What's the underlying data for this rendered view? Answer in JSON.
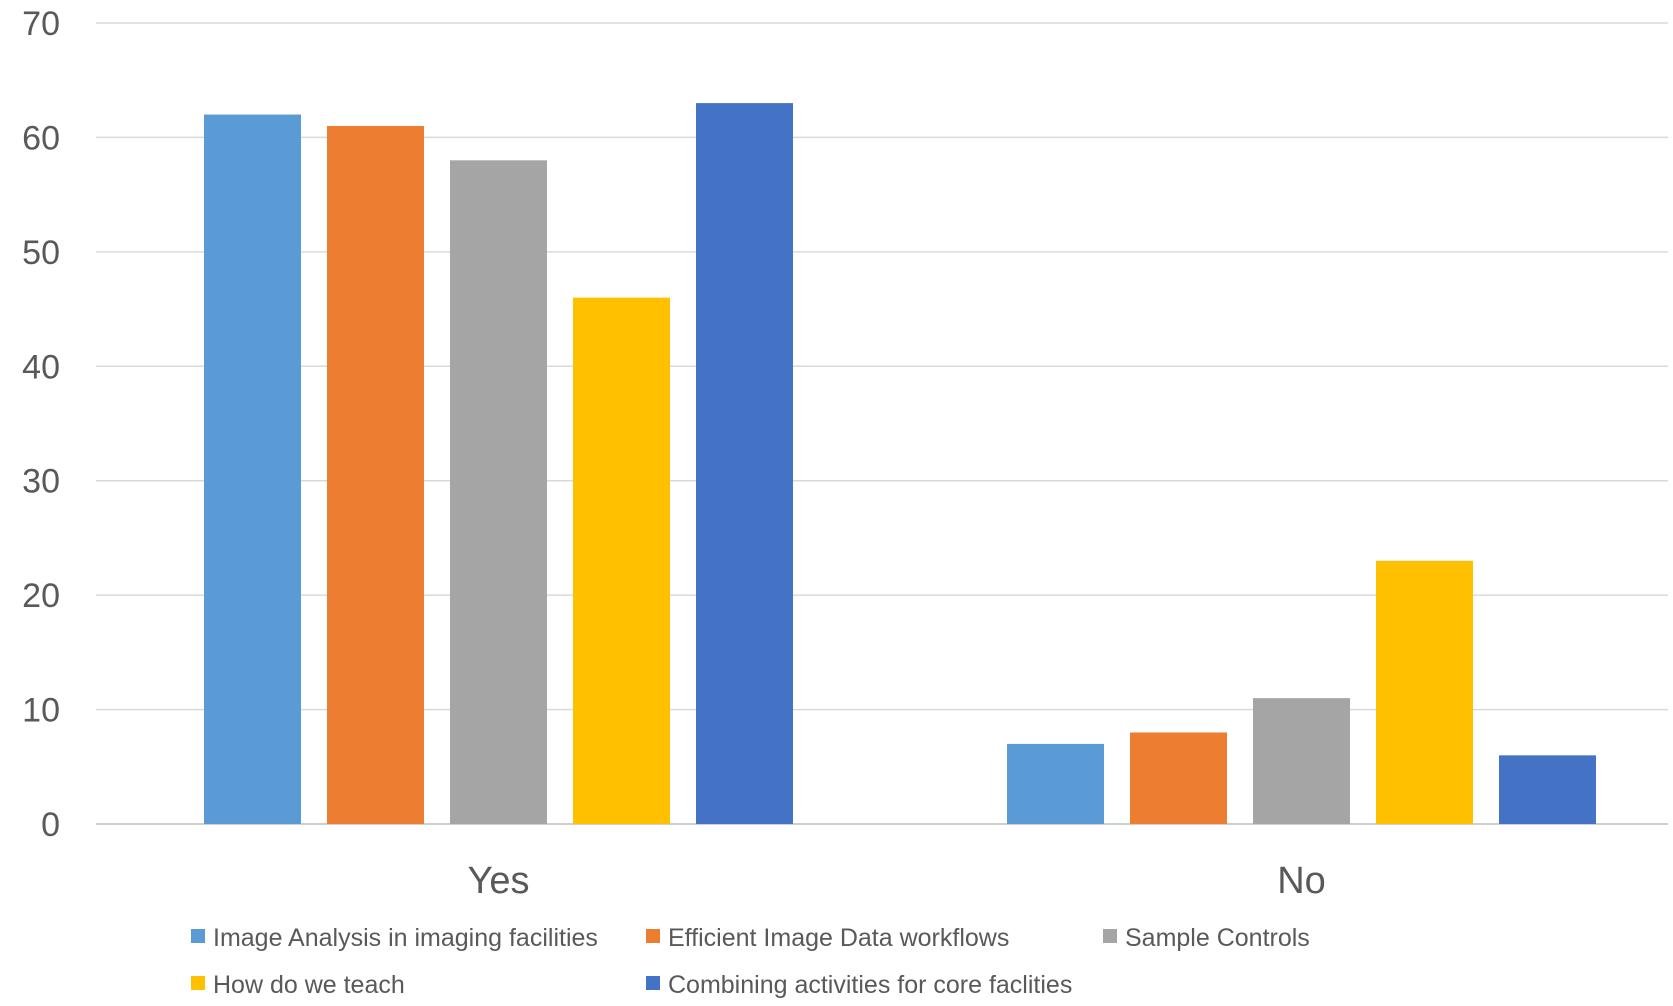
{
  "chart_data": {
    "type": "bar",
    "categories": [
      "Yes",
      "No"
    ],
    "series": [
      {
        "name": "Image Analysis in imaging facilities",
        "color": "#5B9BD5",
        "values": [
          62,
          7
        ]
      },
      {
        "name": "Efficient Image Data workflows",
        "color": "#ED7D31",
        "values": [
          61,
          8
        ]
      },
      {
        "name": "Sample Controls",
        "color": "#A5A5A5",
        "values": [
          58,
          11
        ]
      },
      {
        "name": "How do we teach",
        "color": "#FFC000",
        "values": [
          46,
          23
        ]
      },
      {
        "name": "Combining activities for core faclities",
        "color": "#4472C4",
        "values": [
          63,
          6
        ]
      }
    ],
    "ylim": [
      0,
      70
    ],
    "yticks": [
      0,
      10,
      20,
      30,
      40,
      50,
      60,
      70
    ],
    "grid": true,
    "legend": "bottom"
  }
}
